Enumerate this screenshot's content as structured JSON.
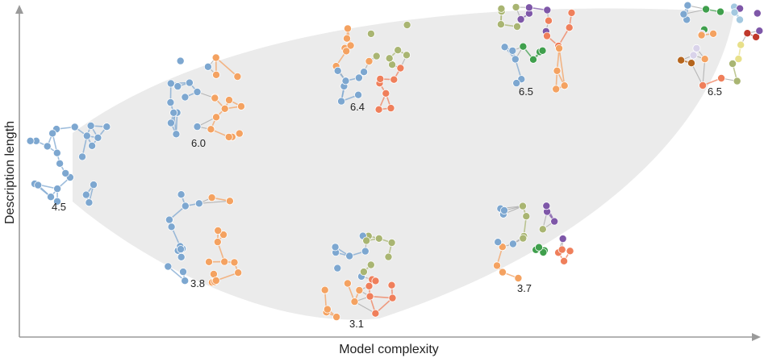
{
  "axes": {
    "x_label": "Model complexity",
    "y_label": "Description length"
  },
  "colors": {
    "axis": "#9a9a9a",
    "envelope": "#ebebeb",
    "edge": "#b0b0b0",
    "groups": [
      "#7da7d0",
      "#f4a261",
      "#a9b572",
      "#ef7f5b",
      "#7e57a8",
      "#3f9f4c",
      "#a3c8e0",
      "#d9d3ea",
      "#e8e08a",
      "#c0392b",
      "#b5651d"
    ]
  },
  "networks": [
    {
      "id": "n1",
      "value": "4.5",
      "colors": [
        0
      ],
      "tier": "start"
    },
    {
      "id": "n2",
      "value": "6.0",
      "colors": [
        0,
        1
      ],
      "tier": "upper"
    },
    {
      "id": "n3",
      "value": "3.8",
      "colors": [
        0,
        1
      ],
      "tier": "lower"
    },
    {
      "id": "n4",
      "value": "6.4",
      "colors": [
        1,
        2,
        0,
        3
      ],
      "tier": "upper"
    },
    {
      "id": "n5",
      "value": "3.1",
      "colors": [
        0,
        2,
        1,
        3
      ],
      "tier": "lower"
    },
    {
      "id": "n6",
      "value": "6.5",
      "colors": [
        2,
        4,
        3,
        0,
        5,
        1
      ],
      "tier": "upper"
    },
    {
      "id": "n7",
      "value": "3.7",
      "colors": [
        0,
        2,
        4,
        1,
        5,
        3
      ],
      "tier": "lower"
    },
    {
      "id": "n8",
      "value": "6.5",
      "colors": [
        0,
        5,
        6,
        4,
        7,
        1,
        8,
        9,
        10,
        3,
        2
      ],
      "tier": "upper"
    }
  ]
}
